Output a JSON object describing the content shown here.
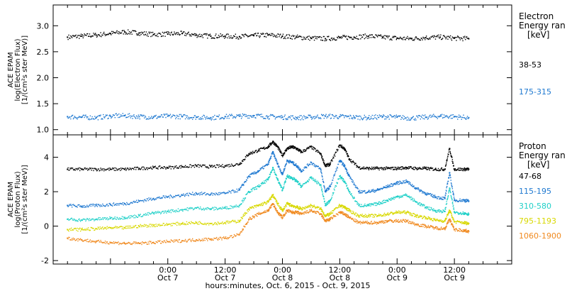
{
  "chart_data": [
    {
      "type": "scatter",
      "panel": "electron",
      "ylabel_lines": [
        "ACE EPAM",
        "log(Electron Flux)",
        "[1/(cm²s ster MeV)]"
      ],
      "ylim": [
        0.9,
        3.4
      ],
      "yticks": [
        1.0,
        1.5,
        2.0,
        2.5,
        3.0
      ],
      "ytick_labels": [
        "1.0",
        "1.5",
        "2.0",
        "2.5",
        "3.0"
      ],
      "legend_title_lines": [
        "Electron",
        "Energy ran",
        "[keV]"
      ],
      "legend_position": "right",
      "series": [
        {
          "name": "38-53",
          "color": "#000000",
          "x": [
            -21,
            -18,
            -15,
            -12,
            -9,
            -6,
            -3,
            0,
            3,
            6,
            9,
            12,
            15,
            18,
            21,
            24,
            27,
            30,
            33,
            36,
            39,
            42,
            45,
            48,
            51,
            54,
            57,
            60,
            63
          ],
          "y": [
            2.78,
            2.8,
            2.82,
            2.85,
            2.88,
            2.86,
            2.83,
            2.84,
            2.85,
            2.82,
            2.8,
            2.8,
            2.79,
            2.81,
            2.82,
            2.8,
            2.78,
            2.76,
            2.75,
            2.77,
            2.78,
            2.8,
            2.78,
            2.76,
            2.75,
            2.77,
            2.78,
            2.76,
            2.75
          ]
        },
        {
          "name": "175-315",
          "color": "#1e78d0",
          "x": [
            -21,
            -18,
            -15,
            -12,
            -9,
            -6,
            -3,
            0,
            3,
            6,
            9,
            12,
            15,
            18,
            21,
            24,
            27,
            30,
            33,
            36,
            39,
            42,
            45,
            48,
            51,
            54,
            57,
            60,
            63
          ],
          "y": [
            1.25,
            1.24,
            1.23,
            1.26,
            1.27,
            1.25,
            1.24,
            1.26,
            1.25,
            1.24,
            1.23,
            1.25,
            1.26,
            1.27,
            1.25,
            1.24,
            1.23,
            1.24,
            1.26,
            1.25,
            1.24,
            1.23,
            1.25,
            1.24,
            1.22,
            1.24,
            1.26,
            1.25,
            1.23
          ]
        }
      ]
    },
    {
      "type": "scatter",
      "panel": "proton",
      "ylabel_lines": [
        "ACE EPAM",
        "log(Proton Flux)",
        "[1/(cm²s ster MeV)]"
      ],
      "ylim": [
        -2.2,
        5.3
      ],
      "yticks": [
        -2,
        0,
        2,
        4
      ],
      "ytick_labels": [
        "-2",
        "0",
        "2",
        "4"
      ],
      "legend_title_lines": [
        "Proton",
        "Energy ran",
        "[keV]"
      ],
      "legend_position": "right",
      "series": [
        {
          "name": "47-68",
          "color": "#000000",
          "x": [
            -21,
            -18,
            -15,
            -12,
            -9,
            -6,
            -3,
            0,
            3,
            6,
            9,
            12,
            15,
            17,
            19,
            21,
            22,
            23,
            24,
            25,
            26,
            27,
            28,
            30,
            32,
            33,
            34,
            36,
            37,
            38,
            40,
            42,
            44,
            46,
            48,
            50,
            52,
            54,
            56,
            58,
            59,
            60,
            62,
            63
          ],
          "y": [
            3.3,
            3.3,
            3.3,
            3.3,
            3.3,
            3.35,
            3.4,
            3.4,
            3.45,
            3.5,
            3.45,
            3.5,
            3.6,
            4.2,
            4.4,
            4.6,
            4.9,
            4.6,
            4.1,
            4.5,
            4.6,
            4.5,
            4.3,
            4.6,
            4.2,
            3.5,
            3.6,
            4.7,
            4.5,
            3.9,
            3.4,
            3.35,
            3.35,
            3.35,
            3.35,
            3.4,
            3.35,
            3.35,
            3.3,
            3.3,
            4.5,
            3.3,
            3.3,
            3.3
          ]
        },
        {
          "name": "115-195",
          "color": "#1e78d0",
          "x": [
            -21,
            -18,
            -15,
            -12,
            -9,
            -6,
            -3,
            0,
            3,
            6,
            9,
            12,
            15,
            17,
            19,
            21,
            22,
            23,
            24,
            25,
            26,
            27,
            28,
            30,
            32,
            33,
            34,
            36,
            37,
            38,
            40,
            42,
            44,
            46,
            48,
            50,
            52,
            54,
            56,
            58,
            59,
            60,
            62,
            63
          ],
          "y": [
            1.2,
            1.15,
            1.2,
            1.25,
            1.3,
            1.45,
            1.6,
            1.7,
            1.8,
            1.9,
            1.85,
            1.9,
            2.1,
            2.9,
            3.2,
            3.6,
            4.3,
            3.6,
            3.0,
            3.8,
            3.7,
            3.5,
            3.2,
            3.7,
            3.3,
            2.0,
            2.3,
            3.8,
            3.5,
            2.9,
            2.0,
            2.0,
            2.1,
            2.3,
            2.5,
            2.6,
            2.2,
            1.9,
            1.7,
            1.6,
            3.1,
            1.5,
            1.5,
            1.45
          ]
        },
        {
          "name": "310-580",
          "color": "#20d0c8",
          "x": [
            -21,
            -18,
            -15,
            -12,
            -9,
            -6,
            -3,
            0,
            3,
            6,
            9,
            12,
            15,
            17,
            19,
            21,
            22,
            23,
            24,
            25,
            26,
            27,
            28,
            30,
            32,
            33,
            34,
            36,
            37,
            38,
            40,
            42,
            44,
            46,
            48,
            50,
            52,
            54,
            56,
            58,
            59,
            60,
            62,
            63
          ],
          "y": [
            0.4,
            0.35,
            0.4,
            0.45,
            0.5,
            0.6,
            0.75,
            0.85,
            0.95,
            1.05,
            1.0,
            1.05,
            1.2,
            2.0,
            2.3,
            2.7,
            3.4,
            2.7,
            2.1,
            2.9,
            2.8,
            2.6,
            2.3,
            2.8,
            2.4,
            1.2,
            1.5,
            2.9,
            2.6,
            2.0,
            1.2,
            1.2,
            1.3,
            1.5,
            1.7,
            1.8,
            1.4,
            1.1,
            0.9,
            0.85,
            2.2,
            0.8,
            0.75,
            0.7
          ]
        },
        {
          "name": "795-1193",
          "color": "#d8d800",
          "x": [
            -21,
            -18,
            -15,
            -12,
            -9,
            -6,
            -3,
            0,
            3,
            6,
            9,
            12,
            15,
            17,
            19,
            21,
            22,
            23,
            24,
            25,
            26,
            27,
            28,
            30,
            32,
            33,
            34,
            36,
            37,
            38,
            40,
            42,
            44,
            46,
            48,
            50,
            52,
            54,
            56,
            58,
            59,
            60,
            62,
            63
          ],
          "y": [
            -0.2,
            -0.2,
            -0.15,
            -0.1,
            -0.1,
            0.0,
            0.05,
            0.1,
            0.15,
            0.2,
            0.15,
            0.2,
            0.3,
            1.0,
            1.2,
            1.4,
            1.8,
            1.3,
            0.9,
            1.3,
            1.2,
            1.1,
            1.0,
            1.2,
            1.0,
            0.6,
            0.7,
            1.2,
            1.1,
            0.9,
            0.6,
            0.6,
            0.6,
            0.7,
            0.8,
            0.8,
            0.6,
            0.5,
            0.35,
            0.3,
            0.9,
            0.25,
            0.2,
            0.15
          ]
        },
        {
          "name": "1060-1900",
          "color": "#f08a20",
          "x": [
            -21,
            -18,
            -15,
            -12,
            -9,
            -6,
            -3,
            0,
            3,
            6,
            9,
            12,
            15,
            17,
            19,
            21,
            22,
            23,
            24,
            25,
            26,
            27,
            28,
            30,
            32,
            33,
            34,
            36,
            37,
            38,
            40,
            42,
            44,
            46,
            48,
            50,
            52,
            54,
            56,
            58,
            59,
            60,
            62,
            63
          ],
          "y": [
            -0.7,
            -0.8,
            -0.9,
            -0.95,
            -1.0,
            -1.0,
            -0.95,
            -0.9,
            -0.85,
            -0.8,
            -0.75,
            -0.7,
            -0.5,
            0.4,
            0.7,
            0.9,
            1.3,
            0.8,
            0.5,
            0.9,
            0.8,
            0.8,
            0.7,
            0.9,
            0.7,
            0.3,
            0.4,
            0.8,
            0.7,
            0.5,
            0.2,
            0.2,
            0.2,
            0.3,
            0.3,
            0.3,
            0.1,
            0.0,
            -0.1,
            -0.15,
            0.4,
            -0.2,
            -0.25,
            -0.3
          ]
        }
      ]
    }
  ],
  "x_axis": {
    "range_hours": [
      -24,
      72
    ],
    "ticks": [
      {
        "h": 0,
        "time": "0:00",
        "day": "Oct 7"
      },
      {
        "h": 12,
        "time": "12:00",
        "day": "Oct 7"
      },
      {
        "h": 24,
        "time": "0:00",
        "day": "Oct 8"
      },
      {
        "h": 36,
        "time": "12:00",
        "day": "Oct 8"
      },
      {
        "h": 48,
        "time": "0:00",
        "day": "Oct 9"
      },
      {
        "h": 60,
        "time": "12:00",
        "day": "Oct 9"
      }
    ],
    "xlabel": "hours:minutes, Oct.  6, 2015 - Oct.  9, 2015"
  }
}
